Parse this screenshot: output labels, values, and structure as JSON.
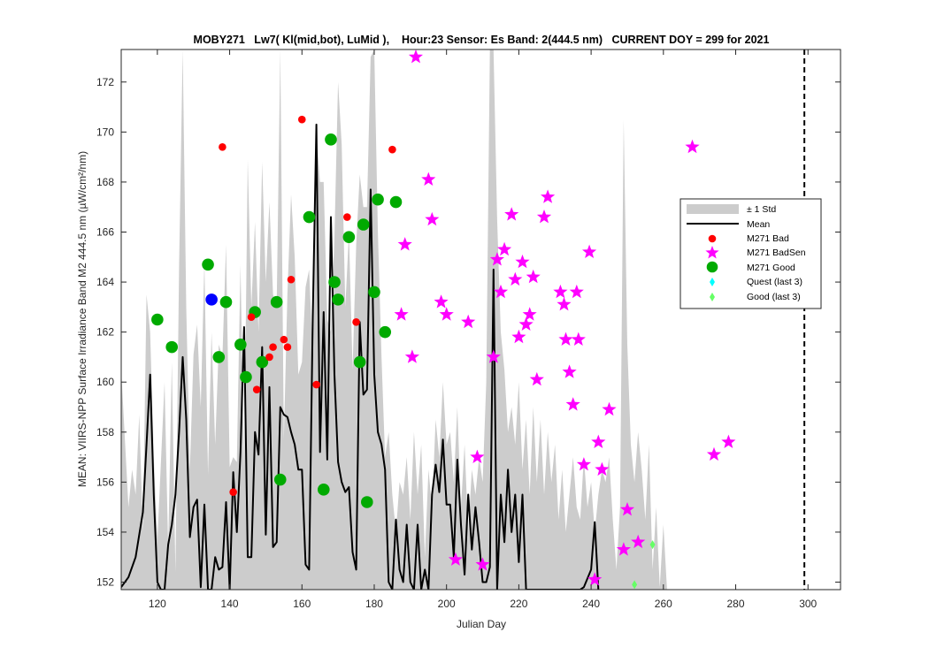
{
  "chart_data": {
    "type": "scatter",
    "title": "MOBY271   Lw7( Kl(mid,bot), LuMid ),    Hour:23 Sensor: Es Band: 2(444.5 nm)   CURRENT DOY = 299 for 2021",
    "xlabel": "Julian Day",
    "ylabel": "MEAN: VIIRS-NPP Surface Irradiance Band M2 444.5 nm (µW/cm²/nm)",
    "xlim": [
      110,
      309
    ],
    "ylim": [
      151.7,
      173.3
    ],
    "x_ticks": [
      "120",
      "140",
      "160",
      "180",
      "200",
      "220",
      "240",
      "260",
      "280",
      "300"
    ],
    "y_ticks": [
      "152",
      "154",
      "156",
      "158",
      "160",
      "162",
      "164",
      "166",
      "168",
      "170",
      "172"
    ],
    "grid": false,
    "legend_position": "right",
    "current_doy": 299,
    "colors": {
      "std_band": "#cccccc",
      "mean": "#000000",
      "bad": "#ff0000",
      "badsen": "#ff00ff",
      "good": "#00aa00",
      "highlight": "#0000ff",
      "quest": "#00ffff",
      "good_last3": "#66ff66"
    },
    "legend": [
      {
        "key": "std",
        "label": "± 1 Std"
      },
      {
        "key": "mean",
        "label": "Mean"
      },
      {
        "key": "bad",
        "label": "M271 Bad"
      },
      {
        "key": "badsen",
        "label": "M271 BadSen"
      },
      {
        "key": "good",
        "label": "M271 Good"
      },
      {
        "key": "quest",
        "label": "Quest (last 3)"
      },
      {
        "key": "good_last3",
        "label": "Good (last 3)"
      }
    ],
    "mean_series": [
      [
        110,
        151.8
      ],
      [
        112,
        152.2
      ],
      [
        114,
        153.0
      ],
      [
        116,
        154.8
      ],
      [
        117,
        157.5
      ],
      [
        118,
        160.3
      ],
      [
        119,
        155.5
      ],
      [
        120,
        152.0
      ],
      [
        121,
        151.7
      ],
      [
        122,
        151.7
      ],
      [
        123,
        153.5
      ],
      [
        124,
        154.3
      ],
      [
        125,
        155.5
      ],
      [
        126,
        158.0
      ],
      [
        127,
        161.0
      ],
      [
        128,
        158.5
      ],
      [
        129,
        153.8
      ],
      [
        130,
        155.0
      ],
      [
        131,
        155.3
      ],
      [
        132,
        151.8
      ],
      [
        133,
        155.1
      ],
      [
        134,
        151.7
      ],
      [
        135,
        151.7
      ],
      [
        136,
        153.0
      ],
      [
        137,
        152.5
      ],
      [
        138,
        152.6
      ],
      [
        139,
        155.2
      ],
      [
        140,
        151.7
      ],
      [
        141,
        156.4
      ],
      [
        142,
        154.0
      ],
      [
        143,
        157.2
      ],
      [
        144,
        162.2
      ],
      [
        145,
        153.0
      ],
      [
        146,
        153.0
      ],
      [
        147,
        158.0
      ],
      [
        148,
        157.1
      ],
      [
        149,
        161.4
      ],
      [
        150,
        153.9
      ],
      [
        151,
        159.8
      ],
      [
        152,
        153.4
      ],
      [
        153,
        153.6
      ],
      [
        154,
        159.0
      ],
      [
        155,
        158.7
      ],
      [
        156,
        158.6
      ],
      [
        157,
        158.0
      ],
      [
        158,
        157.5
      ],
      [
        159,
        156.5
      ],
      [
        160,
        156.5
      ],
      [
        161,
        152.7
      ],
      [
        162,
        152.5
      ],
      [
        163,
        162.6
      ],
      [
        164,
        170.3
      ],
      [
        165,
        157.2
      ],
      [
        166,
        162.8
      ],
      [
        167,
        156.9
      ],
      [
        168,
        166.6
      ],
      [
        169,
        160.3
      ],
      [
        170,
        156.8
      ],
      [
        171,
        156.0
      ],
      [
        172,
        155.6
      ],
      [
        173,
        155.8
      ],
      [
        174,
        153.2
      ],
      [
        175,
        152.5
      ],
      [
        176,
        162.4
      ],
      [
        177,
        159.5
      ],
      [
        178,
        159.7
      ],
      [
        179,
        167.7
      ],
      [
        180,
        160.3
      ],
      [
        181,
        158.0
      ],
      [
        182,
        157.5
      ],
      [
        183,
        156.5
      ],
      [
        184,
        152.0
      ],
      [
        185,
        151.7
      ],
      [
        186,
        154.5
      ],
      [
        187,
        152.5
      ],
      [
        188,
        152.0
      ],
      [
        189,
        154.3
      ],
      [
        190,
        152.0
      ],
      [
        191,
        151.7
      ],
      [
        192,
        154.3
      ],
      [
        193,
        151.7
      ],
      [
        194,
        152.5
      ],
      [
        195,
        151.7
      ],
      [
        196,
        155.5
      ],
      [
        197,
        156.7
      ],
      [
        198,
        155.6
      ],
      [
        199,
        157.7
      ],
      [
        200,
        155.1
      ],
      [
        201,
        155.1
      ],
      [
        202,
        153.0
      ],
      [
        203,
        156.9
      ],
      [
        204,
        154.3
      ],
      [
        205,
        152.3
      ],
      [
        206,
        155.5
      ],
      [
        207,
        153.3
      ],
      [
        208,
        155.0
      ],
      [
        209,
        153.6
      ],
      [
        210,
        152.0
      ],
      [
        211,
        152.0
      ],
      [
        212,
        152.6
      ],
      [
        213,
        164.5
      ],
      [
        214,
        151.7
      ],
      [
        215,
        155.5
      ],
      [
        216,
        153.6
      ],
      [
        217,
        156.5
      ],
      [
        218,
        154.0
      ],
      [
        219,
        155.5
      ],
      [
        220,
        152.8
      ],
      [
        221,
        155.5
      ],
      [
        222,
        151.7
      ],
      [
        223,
        151.7
      ],
      [
        224,
        151.7
      ],
      [
        237,
        151.7
      ],
      [
        238,
        151.8
      ],
      [
        240,
        152.5
      ],
      [
        241,
        154.4
      ],
      [
        242,
        151.7
      ]
    ],
    "std_band_upper": [
      [
        110,
        160.5
      ],
      [
        112,
        155.0
      ],
      [
        113,
        156.5
      ],
      [
        114,
        155.5
      ],
      [
        115,
        158.7
      ],
      [
        116,
        154.0
      ],
      [
        117,
        163.5
      ],
      [
        118,
        162.0
      ],
      [
        119,
        157.0
      ],
      [
        120,
        153.7
      ],
      [
        122,
        160.0
      ],
      [
        123,
        153.3
      ],
      [
        124,
        160.8
      ],
      [
        125,
        152.4
      ],
      [
        126,
        164.6
      ],
      [
        127,
        173.3
      ],
      [
        128,
        163.0
      ],
      [
        129,
        156.5
      ],
      [
        130,
        161.1
      ],
      [
        131,
        162.3
      ],
      [
        132,
        159.0
      ],
      [
        133,
        164.8
      ],
      [
        134,
        156.3
      ],
      [
        135,
        162.0
      ],
      [
        136,
        157.5
      ],
      [
        137,
        161.5
      ],
      [
        138,
        161.0
      ],
      [
        139,
        165.5
      ],
      [
        140,
        156.6
      ],
      [
        141,
        157.0
      ],
      [
        142,
        156.8
      ],
      [
        143,
        164.7
      ],
      [
        144,
        156.5
      ],
      [
        145,
        168.9
      ],
      [
        146,
        163.0
      ],
      [
        147,
        166.4
      ],
      [
        148,
        162.0
      ],
      [
        149,
        168.8
      ],
      [
        150,
        164.0
      ],
      [
        151,
        167.2
      ],
      [
        152,
        163.5
      ],
      [
        153,
        163.0
      ],
      [
        154,
        173.3
      ],
      [
        155,
        157.7
      ],
      [
        156,
        163.6
      ],
      [
        157,
        167.5
      ],
      [
        158,
        165.0
      ],
      [
        159,
        160.3
      ],
      [
        160,
        160.8
      ],
      [
        161,
        163.8
      ],
      [
        162,
        164.5
      ],
      [
        163,
        161.0
      ],
      [
        164,
        170.0
      ],
      [
        165,
        168.0
      ],
      [
        166,
        168.0
      ],
      [
        167,
        162.5
      ],
      [
        168,
        162.0
      ],
      [
        169,
        165.8
      ],
      [
        170,
        172.0
      ],
      [
        171,
        169.5
      ],
      [
        172,
        163.0
      ],
      [
        173,
        166.0
      ],
      [
        174,
        160.5
      ],
      [
        175,
        165.5
      ],
      [
        176,
        168.3
      ],
      [
        177,
        167.0
      ],
      [
        178,
        167.0
      ],
      [
        179,
        173.0
      ],
      [
        180,
        173.3
      ],
      [
        181,
        166.0
      ],
      [
        182,
        161.0
      ],
      [
        183,
        157.0
      ],
      [
        184,
        158.0
      ],
      [
        185,
        155.5
      ],
      [
        186,
        154.0
      ],
      [
        187,
        156.0
      ],
      [
        188,
        155.5
      ],
      [
        189,
        157.0
      ],
      [
        190,
        154.5
      ],
      [
        191,
        158.0
      ],
      [
        192,
        155.5
      ],
      [
        193,
        157.5
      ],
      [
        194,
        153.0
      ],
      [
        195,
        156.5
      ],
      [
        196,
        155.0
      ],
      [
        197,
        158.5
      ],
      [
        198,
        157.0
      ],
      [
        199,
        160.0
      ],
      [
        200,
        157.5
      ],
      [
        201,
        158.0
      ],
      [
        202,
        156.0
      ],
      [
        203,
        159.0
      ],
      [
        204,
        155.0
      ],
      [
        205,
        157.5
      ],
      [
        206,
        154.0
      ],
      [
        207,
        156.5
      ],
      [
        208,
        155.5
      ],
      [
        209,
        157.0
      ],
      [
        210,
        156.0
      ],
      [
        211,
        160.0
      ],
      [
        212,
        173.3
      ],
      [
        213,
        173.3
      ],
      [
        214,
        166.5
      ],
      [
        215,
        162.0
      ],
      [
        216,
        160.5
      ],
      [
        217,
        158.0
      ],
      [
        218,
        159.0
      ],
      [
        219,
        157.5
      ],
      [
        220,
        160.0
      ],
      [
        221,
        156.5
      ],
      [
        222,
        158.5
      ],
      [
        223,
        155.5
      ],
      [
        224,
        159.0
      ],
      [
        225,
        156.0
      ],
      [
        226,
        158.5
      ],
      [
        227,
        155.5
      ],
      [
        228,
        158.0
      ],
      [
        229,
        156.0
      ],
      [
        230,
        157.5
      ],
      [
        231,
        154.5
      ],
      [
        232,
        156.5
      ],
      [
        233,
        154.0
      ],
      [
        234,
        155.5
      ],
      [
        235,
        157.0
      ],
      [
        236,
        155.0
      ],
      [
        237,
        154.5
      ],
      [
        238,
        157.0
      ],
      [
        239,
        155.0
      ],
      [
        240,
        156.0
      ],
      [
        241,
        154.0
      ],
      [
        242,
        155.5
      ],
      [
        243,
        156.5
      ],
      [
        244,
        156.0
      ],
      [
        245,
        157.0
      ],
      [
        246,
        154.5
      ],
      [
        247,
        152.5
      ],
      [
        248,
        155.0
      ],
      [
        249,
        170.5
      ],
      [
        250,
        161.5
      ],
      [
        251,
        157.5
      ],
      [
        252,
        156.0
      ],
      [
        253,
        158.0
      ],
      [
        254,
        156.5
      ],
      [
        255,
        154.5
      ],
      [
        256,
        157.5
      ],
      [
        257,
        152.5
      ],
      [
        258,
        155.0
      ],
      [
        259,
        151.8
      ],
      [
        260,
        154.3
      ],
      [
        261,
        151.7
      ]
    ],
    "bad": [
      [
        138.0,
        169.4
      ],
      [
        141.0,
        155.6
      ],
      [
        146.0,
        162.6
      ],
      [
        147.5,
        159.7
      ],
      [
        151.0,
        161.0
      ],
      [
        152.0,
        161.4
      ],
      [
        155.0,
        161.7
      ],
      [
        156.0,
        161.4
      ],
      [
        157.0,
        164.1
      ],
      [
        160.0,
        170.5
      ],
      [
        164.0,
        159.9
      ],
      [
        172.5,
        166.6
      ],
      [
        175.0,
        162.4
      ],
      [
        185.0,
        169.3
      ]
    ],
    "badsen": [
      [
        191.5,
        173.0
      ],
      [
        195.0,
        168.1
      ],
      [
        196.0,
        166.5
      ],
      [
        188.5,
        165.5
      ],
      [
        187.5,
        162.7
      ],
      [
        190.5,
        161.0
      ],
      [
        198.5,
        163.2
      ],
      [
        200.0,
        162.7
      ],
      [
        206.0,
        162.4
      ],
      [
        208.5,
        157.0
      ],
      [
        202.5,
        152.9
      ],
      [
        210.0,
        152.7
      ],
      [
        213.0,
        161.0
      ],
      [
        214.0,
        164.9
      ],
      [
        215.0,
        163.6
      ],
      [
        216.0,
        165.3
      ],
      [
        218.0,
        166.7
      ],
      [
        219.0,
        164.1
      ],
      [
        220.0,
        161.8
      ],
      [
        221.0,
        164.8
      ],
      [
        222.0,
        162.3
      ],
      [
        223.0,
        162.7
      ],
      [
        224.0,
        164.2
      ],
      [
        225.0,
        160.1
      ],
      [
        227.0,
        166.6
      ],
      [
        228.0,
        167.4
      ],
      [
        231.5,
        163.6
      ],
      [
        232.5,
        163.1
      ],
      [
        233.0,
        161.7
      ],
      [
        234.0,
        160.4
      ],
      [
        235.0,
        159.1
      ],
      [
        236.5,
        161.7
      ],
      [
        236.0,
        163.6
      ],
      [
        238.0,
        156.7
      ],
      [
        239.5,
        165.2
      ],
      [
        242.0,
        157.6
      ],
      [
        243.0,
        156.5
      ],
      [
        245.0,
        158.9
      ],
      [
        241.0,
        152.1
      ],
      [
        249.0,
        153.3
      ],
      [
        250.0,
        154.9
      ],
      [
        253.0,
        153.6
      ],
      [
        268.0,
        169.4
      ],
      [
        274.0,
        157.1
      ],
      [
        278.0,
        157.6
      ]
    ],
    "good": [
      [
        120.0,
        162.5
      ],
      [
        124.0,
        161.4
      ],
      [
        134.0,
        164.7
      ],
      [
        137.0,
        161.0
      ],
      [
        139.0,
        163.2
      ],
      [
        143.0,
        161.5
      ],
      [
        144.5,
        160.2
      ],
      [
        147.0,
        162.8
      ],
      [
        149.0,
        160.8
      ],
      [
        153.0,
        163.2
      ],
      [
        154.0,
        156.1
      ],
      [
        162.0,
        166.6
      ],
      [
        166.0,
        155.7
      ],
      [
        168.0,
        169.7
      ],
      [
        169.0,
        164.0
      ],
      [
        170.0,
        163.3
      ],
      [
        173.0,
        165.8
      ],
      [
        176.0,
        160.8
      ],
      [
        177.0,
        166.3
      ],
      [
        178.0,
        155.2
      ],
      [
        180.0,
        163.6
      ],
      [
        181.0,
        167.3
      ],
      [
        183.0,
        162.0
      ],
      [
        186.0,
        167.2
      ]
    ],
    "highlight": [
      [
        135.0,
        163.3
      ]
    ],
    "good_last3": [
      [
        252.0,
        151.9
      ],
      [
        257.0,
        153.5
      ]
    ]
  }
}
